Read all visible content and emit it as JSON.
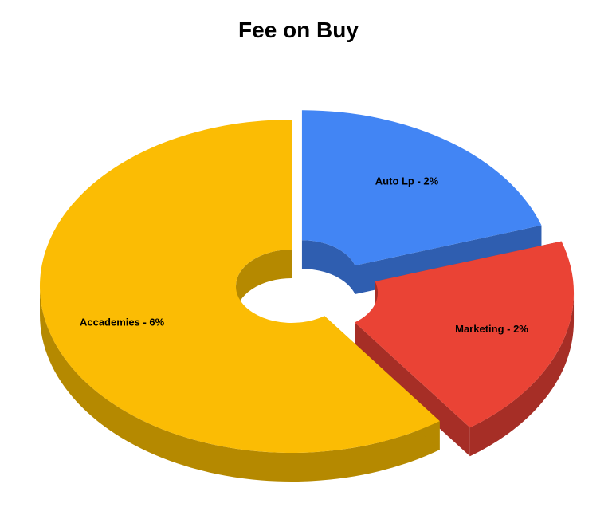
{
  "chart_data": {
    "type": "pie",
    "style": "3d-donut-exploded",
    "title": "Fee on Buy",
    "categories": [
      "Auto Lp",
      "Marketing",
      "Accademies"
    ],
    "values": [
      2,
      2,
      6
    ],
    "labels": [
      "Auto Lp - 2%",
      "Marketing - 2%",
      "Accademies - 6%"
    ],
    "colors": [
      "#4285f4",
      "#ea4335",
      "#fbbc04"
    ],
    "side_colors": [
      "#2f5eb0",
      "#a62e26",
      "#b58900"
    ],
    "legend": "none"
  }
}
